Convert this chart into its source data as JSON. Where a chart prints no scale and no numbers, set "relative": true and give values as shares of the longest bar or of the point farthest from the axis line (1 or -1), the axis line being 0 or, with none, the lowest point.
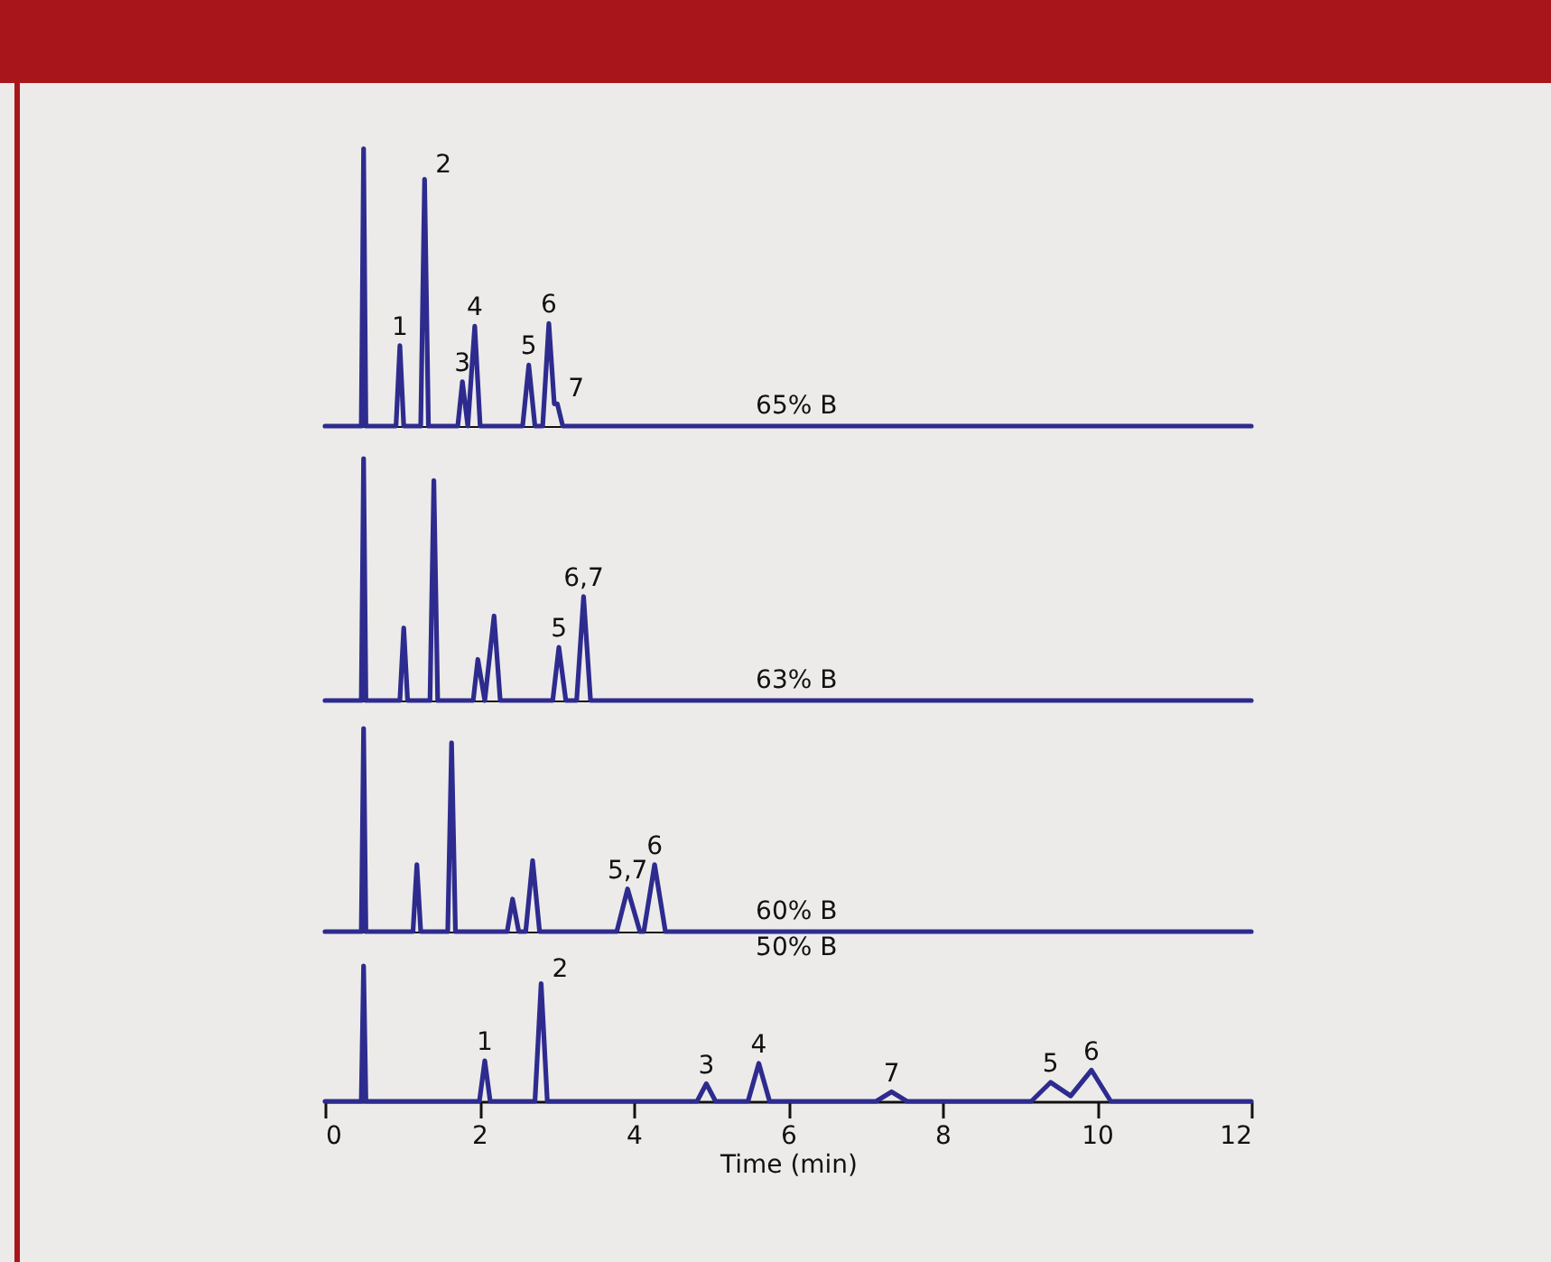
{
  "chart_data": [
    {
      "type": "line",
      "relative": true,
      "xlim": [
        0,
        12
      ],
      "xticks": [
        0,
        2,
        4,
        6,
        8,
        10,
        12
      ],
      "tick_labels": false,
      "series": [
        {
          "name": "65% B",
          "color": "#2e2b8f",
          "x": [
            0,
            0.47,
            0.5,
            0.53,
            0.92,
            0.97,
            1.02,
            1.24,
            1.29,
            1.34,
            1.72,
            1.78,
            1.85,
            1.94,
            2.01,
            2.56,
            2.64,
            2.72,
            2.82,
            2.9,
            2.97,
            3.01,
            3.08,
            12
          ],
          "values": [
            0,
            0,
            1,
            0,
            0,
            0.29,
            0,
            0,
            0.89,
            0,
            0,
            0.16,
            0,
            0.36,
            0,
            0,
            0.22,
            0,
            0,
            0.37,
            0.08,
            0.08,
            0,
            0
          ]
        }
      ],
      "annotations": [
        {
          "text": "1",
          "x": 0.97,
          "y": 0.29
        },
        {
          "text": "2",
          "x": 1.29,
          "y": 0.89
        },
        {
          "text": "3",
          "x": 1.78,
          "y": 0.16
        },
        {
          "text": "4",
          "x": 1.94,
          "y": 0.36
        },
        {
          "text": "5",
          "x": 2.64,
          "y": 0.22
        },
        {
          "text": "6",
          "x": 2.9,
          "y": 0.37
        },
        {
          "text": "7",
          "x": 3.01,
          "y": 0.08
        }
      ]
    },
    {
      "type": "line",
      "relative": true,
      "xlim": [
        0,
        12
      ],
      "xticks": [
        0,
        2,
        4,
        6,
        8,
        10,
        12
      ],
      "tick_labels": false,
      "series": [
        {
          "name": "63% B",
          "color": "#2e2b8f",
          "x": [
            0,
            0.47,
            0.5,
            0.53,
            0.97,
            1.02,
            1.07,
            1.36,
            1.41,
            1.46,
            1.92,
            1.98,
            2.07,
            2.19,
            2.27,
            2.95,
            3.03,
            3.12,
            3.26,
            3.35,
            3.44,
            12
          ],
          "values": [
            0,
            0,
            1,
            0,
            0,
            0.3,
            0,
            0,
            0.91,
            0,
            0,
            0.17,
            0,
            0.35,
            0,
            0,
            0.22,
            0,
            0,
            0.43,
            0,
            0
          ]
        }
      ],
      "annotations": [
        {
          "text": "5",
          "x": 3.03,
          "y": 0.22
        },
        {
          "text": "6,7",
          "x": 3.35,
          "y": 0.43
        }
      ]
    },
    {
      "type": "line",
      "relative": true,
      "xlim": [
        0,
        12
      ],
      "xticks": [
        0,
        2,
        4,
        6,
        8,
        10,
        12
      ],
      "tick_labels": false,
      "series": [
        {
          "name": "60% B",
          "color": "#2e2b8f",
          "x": [
            0,
            0.47,
            0.5,
            0.53,
            1.14,
            1.19,
            1.24,
            1.59,
            1.64,
            1.69,
            2.36,
            2.43,
            2.51,
            2.6,
            2.69,
            2.78,
            3.78,
            3.92,
            4.08,
            4.13,
            4.27,
            4.41,
            12
          ],
          "values": [
            0,
            0,
            1,
            0,
            0,
            0.33,
            0,
            0,
            0.93,
            0,
            0,
            0.16,
            0,
            0,
            0.35,
            0,
            0,
            0.21,
            0,
            0,
            0.33,
            0,
            0
          ]
        }
      ],
      "annotations": [
        {
          "text": "5,7",
          "x": 3.92,
          "y": 0.21
        },
        {
          "text": "6",
          "x": 4.27,
          "y": 0.33
        }
      ]
    },
    {
      "type": "line",
      "relative": true,
      "xlim": [
        0,
        12
      ],
      "xticks": [
        0,
        2,
        4,
        6,
        8,
        10,
        12
      ],
      "xlabel": "Time (min)",
      "tick_labels": "x",
      "series": [
        {
          "name": "50% B",
          "color": "#2e2b8f",
          "x": [
            0,
            0.47,
            0.5,
            0.53,
            2.0,
            2.07,
            2.14,
            2.72,
            2.8,
            2.88,
            4.82,
            4.94,
            5.06,
            5.48,
            5.62,
            5.76,
            7.14,
            7.34,
            7.54,
            9.15,
            9.4,
            9.66,
            9.93,
            10.18,
            12
          ],
          "values": [
            0,
            0,
            1,
            0,
            0,
            0.3,
            0,
            0,
            0.87,
            0,
            0,
            0.13,
            0,
            0,
            0.28,
            0,
            0,
            0.07,
            0,
            0,
            0.14,
            0.04,
            0.23,
            0,
            0
          ]
        }
      ],
      "annotations": [
        {
          "text": "1",
          "x": 2.07,
          "y": 0.3
        },
        {
          "text": "2",
          "x": 2.8,
          "y": 0.87
        },
        {
          "text": "3",
          "x": 4.94,
          "y": 0.13
        },
        {
          "text": "4",
          "x": 5.62,
          "y": 0.28
        },
        {
          "text": "7",
          "x": 7.34,
          "y": 0.07
        },
        {
          "text": "5",
          "x": 9.4,
          "y": 0.14
        },
        {
          "text": "6",
          "x": 9.93,
          "y": 0.23
        }
      ]
    }
  ]
}
